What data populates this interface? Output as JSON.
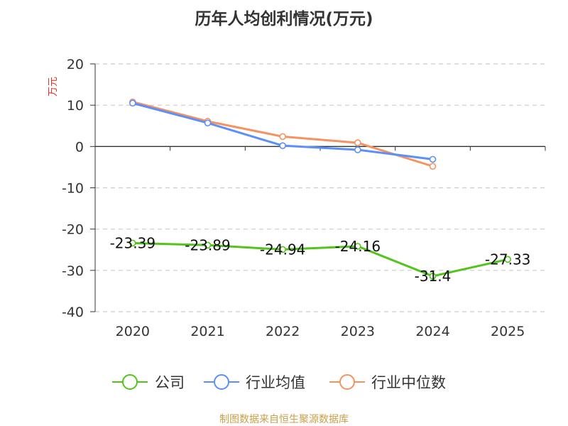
{
  "chart_data": {
    "type": "line",
    "title": "历年人均创利情况(万元)",
    "ylabel": "万元",
    "xlabel": "",
    "categories": [
      "2020",
      "2021",
      "2022",
      "2023",
      "2024",
      "2025"
    ],
    "ylim": [
      -40,
      20
    ],
    "yticks": [
      20,
      10,
      0,
      -10,
      -20,
      -30,
      -40
    ],
    "grid": true,
    "legend_position": "bottom",
    "series": [
      {
        "name": "公司",
        "color": "#52c41a",
        "values": [
          -23.39,
          -23.89,
          -24.94,
          -24.16,
          -31.4,
          -27.33
        ],
        "labels": [
          "-23.39",
          "-23.89",
          "-24.94",
          "-24.16",
          "-31.4",
          "-27.33"
        ]
      },
      {
        "name": "行业均值",
        "color": "#5b8ff9",
        "values": [
          10.5,
          5.7,
          0.2,
          -0.8,
          -3.1,
          null
        ]
      },
      {
        "name": "行业中位数",
        "color": "#f6925e",
        "values": [
          10.8,
          6.1,
          2.4,
          0.9,
          -4.8,
          null
        ]
      }
    ],
    "source": "制图数据来自恒生聚源数据库"
  }
}
